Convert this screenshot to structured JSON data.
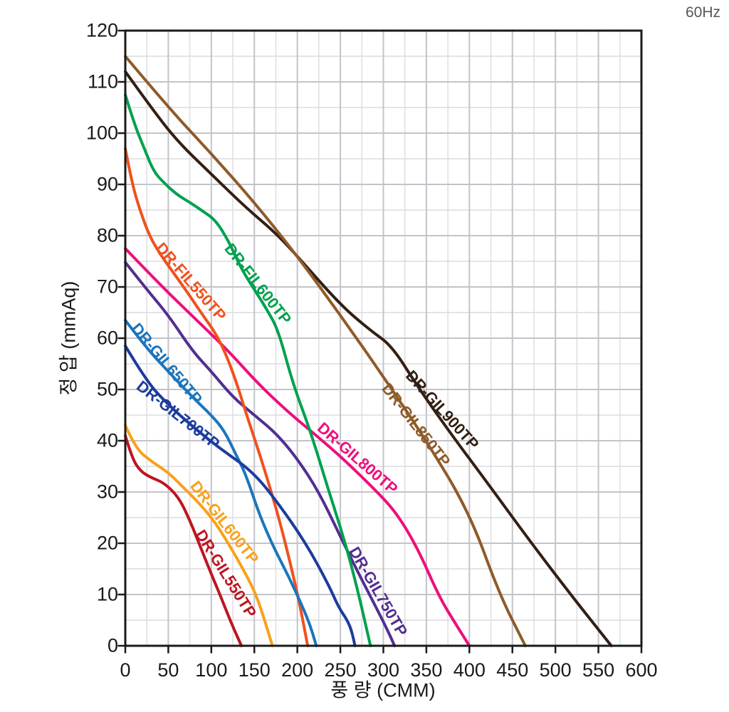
{
  "frequency_label": "60Hz",
  "chart_data": {
    "type": "line",
    "title": "",
    "xlabel": "풍 량 (CMM)",
    "ylabel": "정 압 (mmAq)",
    "xlim": [
      0,
      600
    ],
    "ylim": [
      0,
      120
    ],
    "x_tick_step": 50,
    "y_tick_step": 10,
    "x_minor_step": 25,
    "y_minor_step": 5,
    "grid": "minor 25 CMM x 5 mmAq, major 50 CMM x 10 mmAq",
    "legend_position": "labels-along-curves",
    "series": [
      {
        "name": "DR-GIL900TP",
        "color": "#321f14",
        "label": {
          "x": 368,
          "y": 46,
          "angle": 48
        },
        "points": [
          [
            0,
            112
          ],
          [
            30,
            105
          ],
          [
            60,
            98.5
          ],
          [
            100,
            92
          ],
          [
            140,
            85.5
          ],
          [
            175,
            80.5
          ],
          [
            200,
            76
          ],
          [
            250,
            66.5
          ],
          [
            285,
            61.5
          ],
          [
            310,
            58.5
          ],
          [
            340,
            50.5
          ],
          [
            380,
            41
          ],
          [
            420,
            32
          ],
          [
            470,
            20.5
          ],
          [
            520,
            9.5
          ],
          [
            565,
            0
          ]
        ]
      },
      {
        "name": "DR-GIL850TP",
        "color": "#8f5b2a",
        "label": {
          "x": 338,
          "y": 43,
          "angle": 52
        },
        "points": [
          [
            0,
            115
          ],
          [
            50,
            105
          ],
          [
            100,
            96
          ],
          [
            150,
            86.5
          ],
          [
            200,
            76
          ],
          [
            250,
            64.5
          ],
          [
            300,
            52.5
          ],
          [
            350,
            40
          ],
          [
            400,
            26
          ],
          [
            435,
            10
          ],
          [
            465,
            0
          ]
        ]
      },
      {
        "name": "DR-GIL800TP",
        "color": "#ee0e7c",
        "label": {
          "x": 270,
          "y": 36.5,
          "angle": 41
        },
        "points": [
          [
            0,
            77.5
          ],
          [
            40,
            70.5
          ],
          [
            80,
            64
          ],
          [
            120,
            57.5
          ],
          [
            155,
            51
          ],
          [
            190,
            45.5
          ],
          [
            215,
            42
          ],
          [
            250,
            37
          ],
          [
            290,
            30.5
          ],
          [
            315,
            26
          ],
          [
            340,
            19
          ],
          [
            365,
            9.5
          ],
          [
            385,
            4
          ],
          [
            400,
            0
          ]
        ]
      },
      {
        "name": "DR-GIL750TP",
        "color": "#522e91",
        "label": {
          "x": 294,
          "y": 10.5,
          "angle": 60
        },
        "points": [
          [
            0,
            74.8
          ],
          [
            25,
            69.5
          ],
          [
            50,
            64.5
          ],
          [
            78,
            57.5
          ],
          [
            100,
            53.5
          ],
          [
            125,
            48.5
          ],
          [
            150,
            45
          ],
          [
            175,
            41.5
          ],
          [
            200,
            36.5
          ],
          [
            225,
            30
          ],
          [
            248,
            22
          ],
          [
            270,
            14.5
          ],
          [
            290,
            8
          ],
          [
            305,
            3
          ],
          [
            313,
            0
          ]
        ]
      },
      {
        "name": "DR-FIL600TP",
        "color": "#00a14e",
        "label": {
          "x": 154,
          "y": 70.5,
          "angle": 52
        },
        "points": [
          [
            0,
            107.5
          ],
          [
            10,
            102
          ],
          [
            22,
            97
          ],
          [
            33,
            92.5
          ],
          [
            45,
            90.3
          ],
          [
            60,
            88
          ],
          [
            75,
            86.5
          ],
          [
            90,
            84.8
          ],
          [
            105,
            83
          ],
          [
            120,
            79
          ],
          [
            135,
            73.5
          ],
          [
            150,
            69.5
          ],
          [
            165,
            65.5
          ],
          [
            178,
            61.5
          ],
          [
            195,
            51
          ],
          [
            215,
            42
          ],
          [
            235,
            31
          ],
          [
            255,
            20.5
          ],
          [
            270,
            11
          ],
          [
            285,
            0
          ]
        ]
      },
      {
        "name": "DR-FIL550TP",
        "color": "#f0511d",
        "label": {
          "x": 76,
          "y": 71,
          "angle": 49
        },
        "points": [
          [
            0,
            97
          ],
          [
            8,
            90
          ],
          [
            18,
            84.5
          ],
          [
            28,
            80
          ],
          [
            40,
            76.5
          ],
          [
            55,
            73
          ],
          [
            72,
            69
          ],
          [
            90,
            64.5
          ],
          [
            105,
            61
          ],
          [
            118,
            56.5
          ],
          [
            130,
            51
          ],
          [
            142,
            44.5
          ],
          [
            155,
            38
          ],
          [
            168,
            31
          ],
          [
            180,
            24
          ],
          [
            192,
            16
          ],
          [
            203,
            8
          ],
          [
            212,
            0
          ]
        ]
      },
      {
        "name": "DR-GIL650TP",
        "color": "#1b75bc",
        "label": {
          "x": 48,
          "y": 55,
          "angle": 50
        },
        "points": [
          [
            0,
            63.5
          ],
          [
            25,
            58
          ],
          [
            50,
            53.5
          ],
          [
            78,
            48.5
          ],
          [
            100,
            45
          ],
          [
            115,
            42
          ],
          [
            128,
            37.5
          ],
          [
            140,
            33.5
          ],
          [
            156,
            25.5
          ],
          [
            173,
            19
          ],
          [
            190,
            13.5
          ],
          [
            205,
            8
          ],
          [
            215,
            4
          ],
          [
            222,
            0
          ]
        ]
      },
      {
        "name": "DR-GIL700TP",
        "color": "#1c3b9e",
        "label": {
          "x": 61,
          "y": 45,
          "angle": 38
        },
        "points": [
          [
            0,
            58.5
          ],
          [
            25,
            51.5
          ],
          [
            50,
            47
          ],
          [
            80,
            42.5
          ],
          [
            110,
            38.5
          ],
          [
            148,
            34
          ],
          [
            177,
            28
          ],
          [
            210,
            20
          ],
          [
            236,
            12
          ],
          [
            248,
            7.5
          ],
          [
            258,
            5
          ],
          [
            263,
            3
          ],
          [
            267,
            0
          ]
        ]
      },
      {
        "name": "DR-GIL600TP",
        "color": "#f9a11b",
        "label": {
          "x": 115,
          "y": 24,
          "angle": 52
        },
        "points": [
          [
            0,
            43
          ],
          [
            12,
            38.5
          ],
          [
            30,
            36
          ],
          [
            50,
            33.8
          ],
          [
            65,
            31.3
          ],
          [
            85,
            28
          ],
          [
            105,
            24
          ],
          [
            125,
            18.5
          ],
          [
            140,
            14
          ],
          [
            152,
            10
          ],
          [
            162,
            5
          ],
          [
            171,
            0
          ]
        ]
      },
      {
        "name": "DR-GIL550TP",
        "color": "#be1420",
        "label": {
          "x": 117,
          "y": 14,
          "angle": 58
        },
        "points": [
          [
            0,
            41
          ],
          [
            8,
            36.5
          ],
          [
            18,
            34
          ],
          [
            30,
            32.8
          ],
          [
            45,
            31.8
          ],
          [
            62,
            29
          ],
          [
            75,
            24.5
          ],
          [
            88,
            19
          ],
          [
            100,
            14
          ],
          [
            110,
            10
          ],
          [
            123,
            4.5
          ],
          [
            135,
            0
          ]
        ]
      }
    ]
  }
}
